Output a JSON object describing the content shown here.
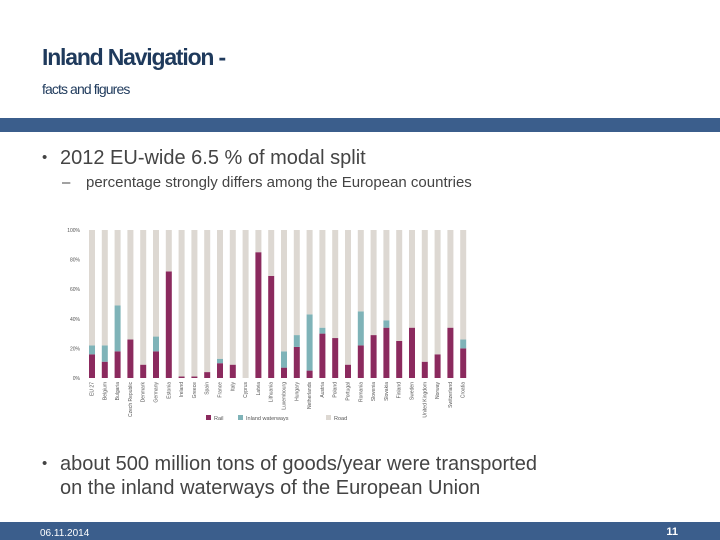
{
  "slide": {
    "title": "Inland Navigation -",
    "subtitle": "facts and figures",
    "bullet1": "2012 EU-wide 6.5 % of modal split",
    "sub_bullet1": "percentage strongly differs among the European countries",
    "bullet2_line1": "about 500 million tons of goods/year were transported",
    "bullet2_line2": "on the inland waterways of the European Union",
    "bullet_glyph": "•",
    "dash_glyph": "–",
    "footer_date": "06.11.2014",
    "page_number": "11"
  },
  "colors": {
    "rail": "#8b2a5e",
    "inland_waterways": "#7fb3b8",
    "road": "#ddd8d2",
    "accent": "#3b5e8c",
    "title": "#1f3a5c"
  },
  "chart_data": {
    "type": "bar",
    "stacked": true,
    "categories": [
      "EU 27",
      "Belgium",
      "Bulgaria",
      "Czech Republic",
      "Denmark",
      "Germany",
      "Estonia",
      "Ireland",
      "Greece",
      "Spain",
      "France",
      "Italy",
      "Cyprus",
      "Latvia",
      "Lithuania",
      "Luxembourg",
      "Hungary",
      "Netherlands",
      "Austria",
      "Poland",
      "Portugal",
      "Romania",
      "Slovenia",
      "Slovakia",
      "Finland",
      "Sweden",
      "United Kingdom",
      "Norway",
      "Switzerland",
      "Croatia"
    ],
    "series": [
      {
        "name": "Rail",
        "values": [
          16,
          11,
          18,
          26,
          9,
          18,
          72,
          1,
          1,
          4,
          10,
          9,
          0,
          85,
          69,
          7,
          21,
          5,
          30,
          27,
          9,
          22,
          29,
          34,
          25,
          34,
          11,
          16,
          34,
          20
        ]
      },
      {
        "name": "Inland waterways",
        "values": [
          6,
          11,
          31,
          0,
          0,
          10,
          0,
          0,
          0,
          0,
          3,
          0,
          0,
          0,
          0,
          11,
          8,
          38,
          4,
          0,
          0,
          23,
          0,
          5,
          0,
          0,
          0,
          0,
          0,
          6
        ]
      },
      {
        "name": "Road",
        "values": [
          78,
          78,
          51,
          74,
          91,
          72,
          28,
          99,
          99,
          96,
          87,
          91,
          100,
          15,
          31,
          82,
          71,
          57,
          66,
          73,
          91,
          55,
          71,
          61,
          75,
          66,
          89,
          84,
          66,
          74
        ]
      }
    ],
    "ylim": [
      0,
      100
    ],
    "yticks": [
      "0%",
      "20%",
      "40%",
      "60%",
      "80%",
      "100%"
    ],
    "legend_position": "bottom",
    "grid": false
  }
}
